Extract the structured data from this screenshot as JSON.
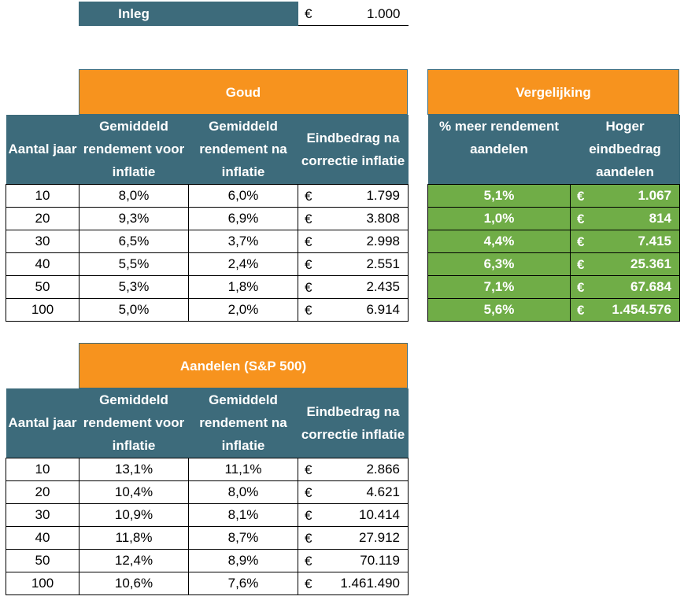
{
  "inleg": {
    "label": "Inleg",
    "currency": "€",
    "value": "1.000"
  },
  "goud": {
    "title": "Goud",
    "headers": [
      "Aantal jaar",
      "Gemiddeld rendement voor inflatie",
      "Gemiddeld rendement na inflatie",
      "Eindbedrag na correctie inflatie"
    ],
    "currency": "€",
    "rows": [
      {
        "jaar": "10",
        "voor": "8,0%",
        "na": "6,0%",
        "eind": "1.799"
      },
      {
        "jaar": "20",
        "voor": "9,3%",
        "na": "6,9%",
        "eind": "3.808"
      },
      {
        "jaar": "30",
        "voor": "6,5%",
        "na": "3,7%",
        "eind": "2.998"
      },
      {
        "jaar": "40",
        "voor": "5,5%",
        "na": "2,4%",
        "eind": "2.551"
      },
      {
        "jaar": "50",
        "voor": "5,3%",
        "na": "1,8%",
        "eind": "2.435"
      },
      {
        "jaar": "100",
        "voor": "5,0%",
        "na": "2,0%",
        "eind": "6.914"
      }
    ]
  },
  "vergelijking": {
    "title": "Vergelijking",
    "headers": [
      "% meer rendement aandelen",
      "Hoger eindbedrag aandelen"
    ],
    "currency": "€",
    "rows": [
      {
        "pct": "5,1%",
        "bedrag": "1.067"
      },
      {
        "pct": "1,0%",
        "bedrag": "814"
      },
      {
        "pct": "4,4%",
        "bedrag": "7.415"
      },
      {
        "pct": "6,3%",
        "bedrag": "25.361"
      },
      {
        "pct": "7,1%",
        "bedrag": "67.684"
      },
      {
        "pct": "5,6%",
        "bedrag": "1.454.576"
      }
    ]
  },
  "aandelen": {
    "title": "Aandelen (S&P 500)",
    "headers": [
      "Aantal jaar",
      "Gemiddeld rendement voor inflatie",
      "Gemiddeld rendement na inflatie",
      "Eindbedrag na correctie inflatie"
    ],
    "currency": "€",
    "rows": [
      {
        "jaar": "10",
        "voor": "13,1%",
        "na": "11,1%",
        "eind": "2.866"
      },
      {
        "jaar": "20",
        "voor": "10,4%",
        "na": "8,0%",
        "eind": "4.621"
      },
      {
        "jaar": "30",
        "voor": "10,9%",
        "na": "8,1%",
        "eind": "10.414"
      },
      {
        "jaar": "40",
        "voor": "11,8%",
        "na": "8,7%",
        "eind": "27.912"
      },
      {
        "jaar": "50",
        "voor": "12,4%",
        "na": "8,9%",
        "eind": "70.119"
      },
      {
        "jaar": "100",
        "voor": "10,6%",
        "na": "7,6%",
        "eind": "1.461.490"
      }
    ]
  },
  "colors": {
    "orange": "#f7931e",
    "teal": "#3d6b7b",
    "green": "#70ad47"
  }
}
